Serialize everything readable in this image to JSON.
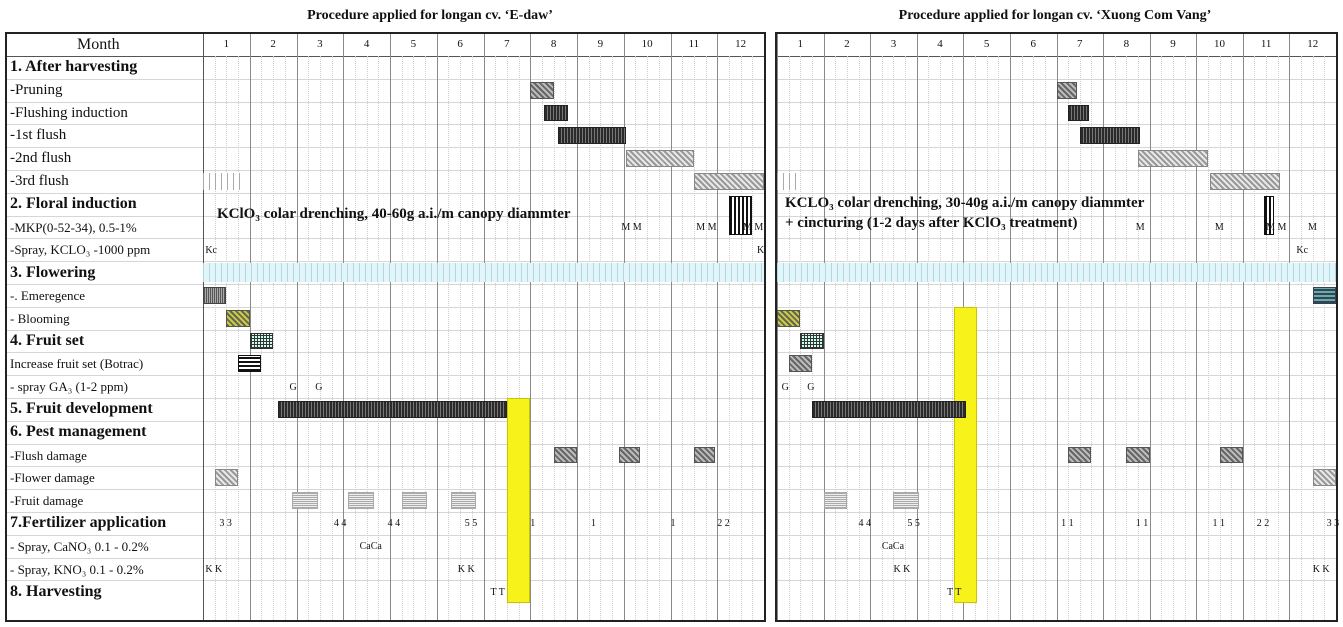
{
  "titles": {
    "left": "Procedure applied for longan cv. ‘E-daw’",
    "right": "Procedure applied for longan cv. ‘Xuong Com Vang’"
  },
  "header": {
    "month_label": "Month",
    "months": [
      "1",
      "2",
      "3",
      "4",
      "5",
      "6",
      "7",
      "8",
      "9",
      "10",
      "11",
      "12"
    ]
  },
  "rows": [
    {
      "label": "1. After harvesting",
      "style": "sec"
    },
    {
      "label": "-Pruning",
      "style": "sub"
    },
    {
      "label": "-Flushing induction",
      "style": "sub"
    },
    {
      "label": "-1st flush",
      "style": "sub"
    },
    {
      "label": "-2nd flush",
      "style": "sub"
    },
    {
      "label": "-3rd flush",
      "style": "sub"
    },
    {
      "label": "2. Floral induction",
      "style": "sec"
    },
    {
      "label": "-MKP(0-52-34), 0.5-1%",
      "style": "small"
    },
    {
      "label": "-Spray, KCLO₃ -1000 ppm",
      "style": "small"
    },
    {
      "label": "3. Flowering",
      "style": "sec"
    },
    {
      "label": "-. Emeregence",
      "style": "small"
    },
    {
      "label": "- Blooming",
      "style": "small"
    },
    {
      "label": "4. Fruit set",
      "style": "sec"
    },
    {
      "label": "Increase fruit set (Botrac)",
      "style": "small"
    },
    {
      "label": "-  spray GA₃ (1-2 ppm)",
      "style": "small"
    },
    {
      "label": "5. Fruit development",
      "style": "sec"
    },
    {
      "label": "6. Pest management",
      "style": "sec"
    },
    {
      "label": "-Flush damage",
      "style": "small"
    },
    {
      "label": "-Flower damage",
      "style": "small"
    },
    {
      "label": "-Fruit damage",
      "style": "small"
    },
    {
      "label": "7.Fertilizer application",
      "style": "sec"
    },
    {
      "label": "- Spray, CaNO₃ 0.1 - 0.2%",
      "style": "small"
    },
    {
      "label": "- Spray, KNO₃ 0.1 - 0.2%",
      "style": "small"
    },
    {
      "label": "8. Harvesting",
      "style": "sec"
    }
  ],
  "annotations": {
    "left": "KClO₃ colar drenching, 40-60g a.i./m canopy diammter",
    "right_line1": "KCLO₃ colar drenching, 30-40g a.i./m canopy diammter",
    "right_line2": "+ cincturing (1-2 days after KClO₃ treatment)"
  },
  "left_schedule": {
    "bars": [
      {
        "row": 1,
        "m": 7.0,
        "d": 0.5,
        "p": "md"
      },
      {
        "row": 2,
        "m": 7.3,
        "d": 0.5,
        "p": "dk"
      },
      {
        "row": 3,
        "m": 7.6,
        "d": 1.45,
        "p": "dk"
      },
      {
        "row": 4,
        "m": 9.05,
        "d": 1.45,
        "p": "lt"
      },
      {
        "row": 5,
        "m": 0.0,
        "d": 0.8,
        "p": "vtl"
      },
      {
        "row": 5,
        "m": 10.5,
        "d": 1.5,
        "p": "lt"
      },
      {
        "row": 6,
        "m": 11.25,
        "d": 0.5,
        "p": "vt"
      },
      {
        "row": 10,
        "m": 0.0,
        "d": 0.5,
        "p": "tx"
      },
      {
        "row": 11,
        "m": 0.5,
        "d": 0.5,
        "p": "ol"
      },
      {
        "row": 12,
        "m": 1.0,
        "d": 0.5,
        "p": "ck"
      },
      {
        "row": 13,
        "m": 0.75,
        "d": 0.5,
        "p": "hz"
      },
      {
        "row": 15,
        "m": 1.6,
        "d": 4.9,
        "p": "dk"
      },
      {
        "row": 17,
        "m": 7.5,
        "d": 0.5,
        "p": "md"
      },
      {
        "row": 17,
        "m": 8.9,
        "d": 0.45,
        "p": "md"
      },
      {
        "row": 17,
        "m": 10.5,
        "d": 0.45,
        "p": "md"
      },
      {
        "row": 18,
        "m": 0.25,
        "d": 0.5,
        "p": "lt"
      },
      {
        "row": 19,
        "m": 1.9,
        "d": 0.55,
        "p": "dt"
      },
      {
        "row": 19,
        "m": 3.1,
        "d": 0.55,
        "p": "dt"
      },
      {
        "row": 19,
        "m": 4.25,
        "d": 0.55,
        "p": "dt"
      },
      {
        "row": 19,
        "m": 5.3,
        "d": 0.55,
        "p": "dt"
      }
    ],
    "marks": [
      {
        "row": 7,
        "m": 8.95,
        "t": "M M"
      },
      {
        "row": 7,
        "m": 10.55,
        "t": "M M"
      },
      {
        "row": 7,
        "m": 11.55,
        "t": "M M"
      },
      {
        "row": 8,
        "m": 0.05,
        "t": "Kc"
      },
      {
        "row": 8,
        "m": 11.85,
        "t": "K"
      },
      {
        "row": 14,
        "m": 1.85,
        "t": "G"
      },
      {
        "row": 14,
        "m": 2.4,
        "t": "G"
      },
      {
        "row": 20,
        "m": 0.35,
        "t": "3  3"
      },
      {
        "row": 20,
        "m": 2.8,
        "t": "4  4"
      },
      {
        "row": 20,
        "m": 3.95,
        "t": "4  4"
      },
      {
        "row": 20,
        "m": 5.6,
        "t": "5  5"
      },
      {
        "row": 20,
        "m": 7.0,
        "t": "1"
      },
      {
        "row": 20,
        "m": 8.3,
        "t": "1"
      },
      {
        "row": 20,
        "m": 10.0,
        "t": "1"
      },
      {
        "row": 20,
        "m": 11.0,
        "t": "2  2"
      },
      {
        "row": 21,
        "m": 3.35,
        "t": "CaCa"
      },
      {
        "row": 22,
        "m": 0.05,
        "t": "K  K"
      },
      {
        "row": 22,
        "m": 5.45,
        "t": "K  K"
      },
      {
        "row": 23,
        "m": 6.15,
        "t": "T  T"
      }
    ],
    "yellow_m": 6.5
  },
  "right_schedule": {
    "bars": [
      {
        "row": 1,
        "m": 6.0,
        "d": 0.45,
        "p": "md"
      },
      {
        "row": 2,
        "m": 6.25,
        "d": 0.45,
        "p": "dk"
      },
      {
        "row": 3,
        "m": 6.5,
        "d": 1.3,
        "p": "dk"
      },
      {
        "row": 4,
        "m": 7.75,
        "d": 1.5,
        "p": "lt"
      },
      {
        "row": 5,
        "m": 0.0,
        "d": 0.5,
        "p": "vtl"
      },
      {
        "row": 5,
        "m": 9.3,
        "d": 1.5,
        "p": "lt"
      },
      {
        "row": 6,
        "m": 10.45,
        "d": 0.22,
        "p": "vt"
      },
      {
        "row": 10,
        "m": 11.5,
        "d": 0.5,
        "p": "te"
      },
      {
        "row": 11,
        "m": 0.0,
        "d": 0.5,
        "p": "ol"
      },
      {
        "row": 12,
        "m": 0.5,
        "d": 0.5,
        "p": "ck"
      },
      {
        "row": 13,
        "m": 0.25,
        "d": 0.5,
        "p": "md"
      },
      {
        "row": 15,
        "m": 0.75,
        "d": 3.3,
        "p": "dk"
      },
      {
        "row": 17,
        "m": 6.25,
        "d": 0.5,
        "p": "md"
      },
      {
        "row": 17,
        "m": 7.5,
        "d": 0.5,
        "p": "md"
      },
      {
        "row": 17,
        "m": 9.5,
        "d": 0.5,
        "p": "md"
      },
      {
        "row": 18,
        "m": 11.5,
        "d": 0.5,
        "p": "lt"
      },
      {
        "row": 19,
        "m": 1.0,
        "d": 0.5,
        "p": "dt"
      },
      {
        "row": 19,
        "m": 2.5,
        "d": 0.55,
        "p": "dt"
      }
    ],
    "marks": [
      {
        "row": 7,
        "m": 7.7,
        "t": "M"
      },
      {
        "row": 7,
        "m": 9.4,
        "t": "M"
      },
      {
        "row": 7,
        "m": 10.5,
        "t": "M  M"
      },
      {
        "row": 7,
        "m": 11.4,
        "t": "M"
      },
      {
        "row": 8,
        "m": 11.15,
        "t": "Kc"
      },
      {
        "row": 14,
        "m": 0.1,
        "t": "G"
      },
      {
        "row": 14,
        "m": 0.65,
        "t": "G"
      },
      {
        "row": 20,
        "m": 1.75,
        "t": "4  4"
      },
      {
        "row": 20,
        "m": 2.8,
        "t": "5  5"
      },
      {
        "row": 20,
        "m": 6.1,
        "t": "1  1"
      },
      {
        "row": 20,
        "m": 7.7,
        "t": "1  1"
      },
      {
        "row": 20,
        "m": 9.35,
        "t": "1  1"
      },
      {
        "row": 20,
        "m": 10.3,
        "t": "2  2"
      },
      {
        "row": 20,
        "m": 11.8,
        "t": "3  3"
      },
      {
        "row": 21,
        "m": 2.25,
        "t": "CaCa"
      },
      {
        "row": 22,
        "m": 2.5,
        "t": "K  K"
      },
      {
        "row": 22,
        "m": 11.5,
        "t": "K  K"
      },
      {
        "row": 23,
        "m": 3.65,
        "t": "T  T"
      }
    ],
    "yellow_m": 3.8
  }
}
